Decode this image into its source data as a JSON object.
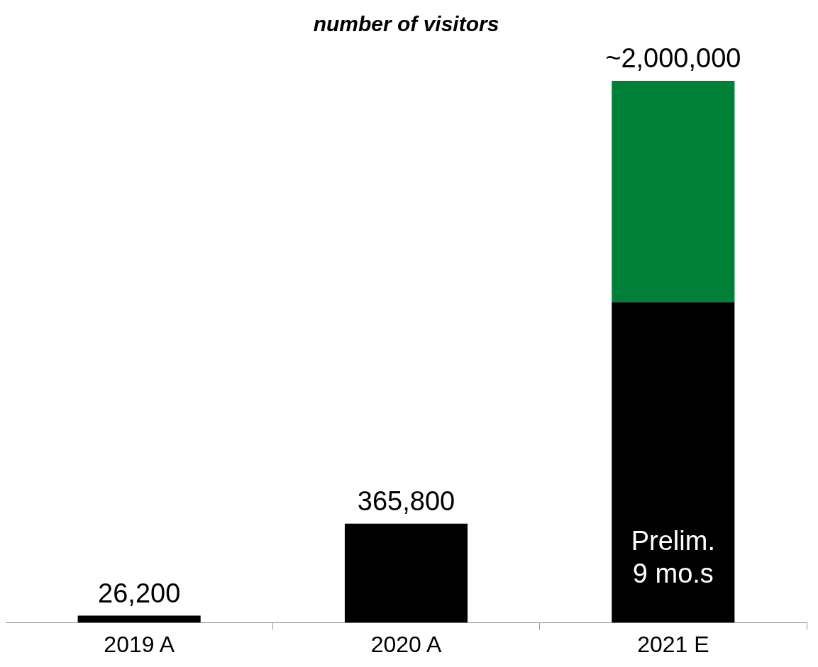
{
  "chart_data": {
    "type": "bar",
    "title": "number of visitors",
    "categories": [
      "2019 A",
      "2020 A",
      "2021 E"
    ],
    "stacked": true,
    "series": [
      {
        "color": "#000000",
        "values": [
          26200,
          365800,
          1183000
        ],
        "value_labels": [
          "26,200",
          "365,800",
          null
        ]
      },
      {
        "color": "#008037",
        "values": [
          null,
          null,
          817000
        ]
      }
    ],
    "totals": [
      null,
      null,
      "~2,000,000"
    ],
    "ylim": [
      0,
      2000000
    ],
    "annotations": [
      "Prelim. 9 mo.s"
    ],
    "grid": false,
    "legend": false
  }
}
